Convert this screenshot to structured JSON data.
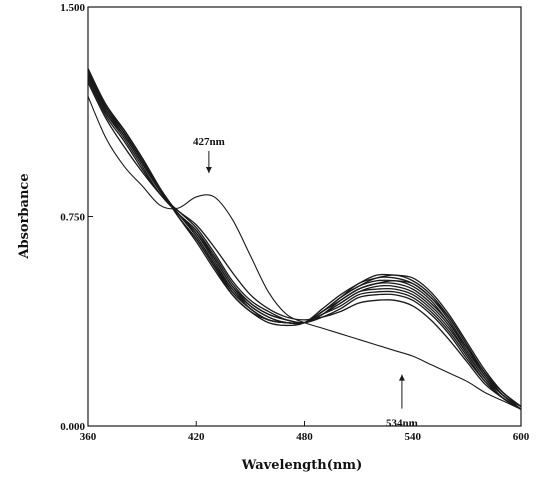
{
  "chart_data": {
    "type": "line",
    "title": "",
    "xlabel": "Wavelength(nm)",
    "ylabel": "Absorbance",
    "xlim": [
      360,
      600
    ],
    "ylim": [
      0.0,
      1.5
    ],
    "grid": false,
    "legend": "none",
    "x_ticks": [
      360,
      420,
      480,
      540,
      600
    ],
    "x_tick_labels": [
      "360",
      "420",
      "480",
      "540",
      "600"
    ],
    "y_ticks": [
      0.0,
      0.75,
      1.5
    ],
    "y_tick_labels": [
      "0.000",
      "0.750",
      "1.500"
    ],
    "line_color": "#1a1a1a",
    "x": [
      360,
      370,
      380,
      390,
      400,
      410,
      420,
      430,
      440,
      450,
      460,
      470,
      480,
      490,
      500,
      510,
      520,
      530,
      540,
      550,
      560,
      570,
      580,
      590,
      600
    ],
    "series": [
      {
        "values": [
          1.18,
          1.03,
          0.93,
          0.86,
          0.79,
          0.78,
          0.82,
          0.82,
          0.74,
          0.61,
          0.48,
          0.4,
          0.37,
          0.35,
          0.33,
          0.31,
          0.29,
          0.27,
          0.25,
          0.22,
          0.19,
          0.16,
          0.12,
          0.09,
          0.06
        ]
      },
      {
        "values": [
          1.23,
          1.1,
          1.0,
          0.91,
          0.83,
          0.77,
          0.72,
          0.64,
          0.55,
          0.47,
          0.42,
          0.39,
          0.38,
          0.39,
          0.41,
          0.44,
          0.45,
          0.45,
          0.43,
          0.38,
          0.31,
          0.23,
          0.15,
          0.1,
          0.06
        ]
      },
      {
        "values": [
          1.24,
          1.11,
          1.02,
          0.92,
          0.83,
          0.77,
          0.71,
          0.62,
          0.52,
          0.45,
          0.41,
          0.38,
          0.37,
          0.39,
          0.42,
          0.46,
          0.47,
          0.47,
          0.45,
          0.4,
          0.33,
          0.24,
          0.16,
          0.1,
          0.06
        ]
      },
      {
        "values": [
          1.25,
          1.12,
          1.03,
          0.93,
          0.83,
          0.76,
          0.7,
          0.61,
          0.51,
          0.44,
          0.4,
          0.38,
          0.37,
          0.4,
          0.43,
          0.47,
          0.48,
          0.48,
          0.46,
          0.41,
          0.34,
          0.25,
          0.16,
          0.1,
          0.06
        ]
      },
      {
        "values": [
          1.25,
          1.12,
          1.04,
          0.94,
          0.84,
          0.76,
          0.7,
          0.6,
          0.5,
          0.44,
          0.4,
          0.38,
          0.37,
          0.4,
          0.44,
          0.48,
          0.49,
          0.49,
          0.47,
          0.42,
          0.35,
          0.26,
          0.17,
          0.1,
          0.06
        ]
      },
      {
        "values": [
          1.26,
          1.13,
          1.04,
          0.94,
          0.84,
          0.76,
          0.69,
          0.6,
          0.5,
          0.43,
          0.39,
          0.37,
          0.37,
          0.4,
          0.44,
          0.48,
          0.5,
          0.5,
          0.48,
          0.43,
          0.36,
          0.26,
          0.17,
          0.11,
          0.06
        ]
      },
      {
        "values": [
          1.26,
          1.13,
          1.05,
          0.95,
          0.84,
          0.76,
          0.69,
          0.59,
          0.49,
          0.43,
          0.39,
          0.37,
          0.37,
          0.4,
          0.45,
          0.49,
          0.51,
          0.51,
          0.49,
          0.44,
          0.37,
          0.27,
          0.18,
          0.11,
          0.06
        ]
      },
      {
        "values": [
          1.26,
          1.14,
          1.05,
          0.95,
          0.84,
          0.76,
          0.68,
          0.58,
          0.49,
          0.42,
          0.38,
          0.37,
          0.37,
          0.41,
          0.45,
          0.49,
          0.51,
          0.52,
          0.5,
          0.45,
          0.37,
          0.28,
          0.18,
          0.11,
          0.07
        ]
      },
      {
        "values": [
          1.27,
          1.14,
          1.05,
          0.95,
          0.85,
          0.76,
          0.68,
          0.58,
          0.48,
          0.42,
          0.38,
          0.37,
          0.37,
          0.41,
          0.46,
          0.5,
          0.52,
          0.52,
          0.51,
          0.46,
          0.38,
          0.28,
          0.19,
          0.11,
          0.07
        ]
      },
      {
        "values": [
          1.27,
          1.14,
          1.06,
          0.96,
          0.85,
          0.75,
          0.67,
          0.57,
          0.48,
          0.42,
          0.38,
          0.37,
          0.37,
          0.41,
          0.46,
          0.5,
          0.53,
          0.53,
          0.51,
          0.46,
          0.39,
          0.29,
          0.19,
          0.12,
          0.07
        ]
      },
      {
        "values": [
          1.27,
          1.15,
          1.06,
          0.96,
          0.85,
          0.75,
          0.67,
          0.57,
          0.47,
          0.41,
          0.38,
          0.37,
          0.37,
          0.41,
          0.46,
          0.51,
          0.53,
          0.54,
          0.52,
          0.47,
          0.39,
          0.29,
          0.19,
          0.12,
          0.07
        ]
      },
      {
        "values": [
          1.28,
          1.15,
          1.06,
          0.96,
          0.85,
          0.75,
          0.66,
          0.56,
          0.47,
          0.41,
          0.37,
          0.36,
          0.37,
          0.42,
          0.47,
          0.51,
          0.54,
          0.54,
          0.53,
          0.48,
          0.4,
          0.3,
          0.2,
          0.12,
          0.07
        ]
      }
    ],
    "annotations": [
      {
        "text": "427nm",
        "x": 427,
        "y": 0.82,
        "arrow": "down"
      },
      {
        "text": "534nm",
        "x": 534,
        "y": 0.27,
        "arrow": "up"
      }
    ]
  }
}
